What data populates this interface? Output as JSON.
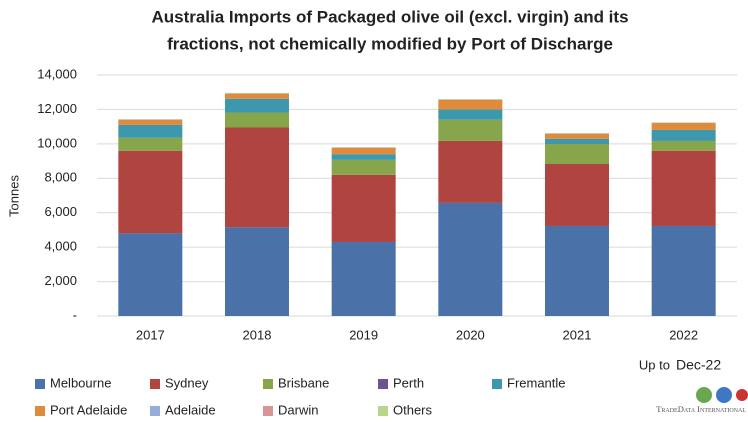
{
  "chart_data": {
    "type": "stacked_bar",
    "title": [
      "Australia Imports of Packaged olive oil (excl. virgin) and its",
      "fractions, not chemically modified by Port of Discharge"
    ],
    "y_label": "Tonnes",
    "categories": [
      "2017",
      "2018",
      "2019",
      "2020",
      "2021",
      "2022"
    ],
    "series": [
      {
        "name": "Melbourne",
        "color": "#4a72a8",
        "values": [
          4800,
          5150,
          4300,
          6570,
          5230,
          5230
        ]
      },
      {
        "name": "Sydney",
        "color": "#b04440",
        "values": [
          4800,
          5800,
          3900,
          3600,
          3600,
          4370
        ]
      },
      {
        "name": "Brisbane",
        "color": "#87a54a",
        "values": [
          750,
          870,
          870,
          1230,
          1160,
          570
        ]
      },
      {
        "name": "Perth",
        "color": "#6e548f",
        "values": [
          0,
          0,
          0,
          0,
          0,
          0
        ]
      },
      {
        "name": "Fremantle",
        "color": "#3d98ae",
        "values": [
          750,
          800,
          330,
          600,
          300,
          640
        ]
      },
      {
        "name": "Port Adelaide",
        "color": "#e08a3c",
        "values": [
          300,
          300,
          370,
          560,
          300,
          400
        ]
      },
      {
        "name": "Adelaide",
        "color": "#94aed6",
        "values": [
          20,
          20,
          20,
          20,
          20,
          20
        ]
      },
      {
        "name": "Darwin",
        "color": "#d99594",
        "values": [
          0,
          0,
          0,
          0,
          0,
          0
        ]
      },
      {
        "name": "Others",
        "color": "#b9d48f",
        "values": [
          20,
          20,
          20,
          20,
          20,
          20
        ]
      }
    ],
    "ylim": [
      0,
      14000
    ],
    "yticks": [
      {
        "value": 0,
        "label": "-"
      },
      {
        "value": 2000,
        "label": "2,000"
      },
      {
        "value": 4000,
        "label": "4,000"
      },
      {
        "value": 6000,
        "label": "6,000"
      },
      {
        "value": 8000,
        "label": "8,000"
      },
      {
        "value": 10000,
        "label": "10,000"
      },
      {
        "value": 12000,
        "label": "12,000"
      },
      {
        "value": 14000,
        "label": "14,000"
      }
    ],
    "grid": true,
    "note": [
      "Up to",
      "Dec-22"
    ],
    "logo": "TradeData International"
  }
}
